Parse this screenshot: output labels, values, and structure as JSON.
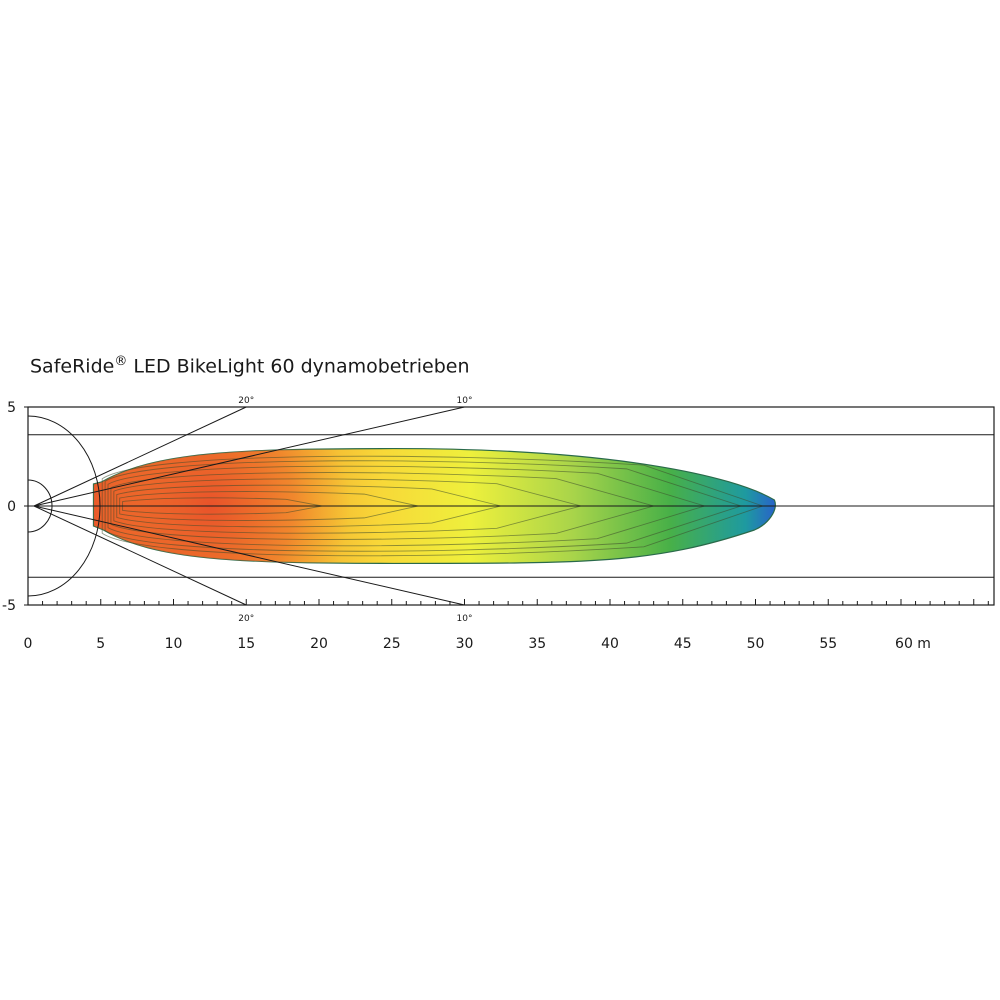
{
  "title": {
    "brand": "SafeRide",
    "mark": "®",
    "rest": " LED BikeLight 60 dynamobetrieben"
  },
  "chart_data": {
    "type": "heatmap",
    "title": "SafeRide® LED BikeLight 60 dynamobetrieben",
    "x_ticks": [
      "0",
      "5",
      "10",
      "15",
      "20",
      "25",
      "30",
      "35",
      "40",
      "45",
      "50",
      "55",
      "60 m"
    ],
    "y_ticks": [
      "5",
      "0",
      "-5"
    ],
    "xlim": [
      0,
      66
    ],
    "ylim": [
      -5,
      5
    ],
    "reference_lines_y": [
      3.6,
      0,
      -3.6
    ],
    "angle_lines": [
      {
        "label": "20°",
        "end_x": 15
      },
      {
        "label": "10°",
        "end_x": 30
      }
    ],
    "beam": {
      "start_x": 4.5,
      "end_x": 51.3,
      "max_half_width": 2.9,
      "hotspot_x": 13,
      "color_scale": [
        "#e8502a",
        "#f08a2a",
        "#f8d838",
        "#eef03c",
        "#a8d44a",
        "#48b048",
        "#1e9aa0",
        "#2a5ad0"
      ]
    },
    "grid": false,
    "legend": "none"
  }
}
